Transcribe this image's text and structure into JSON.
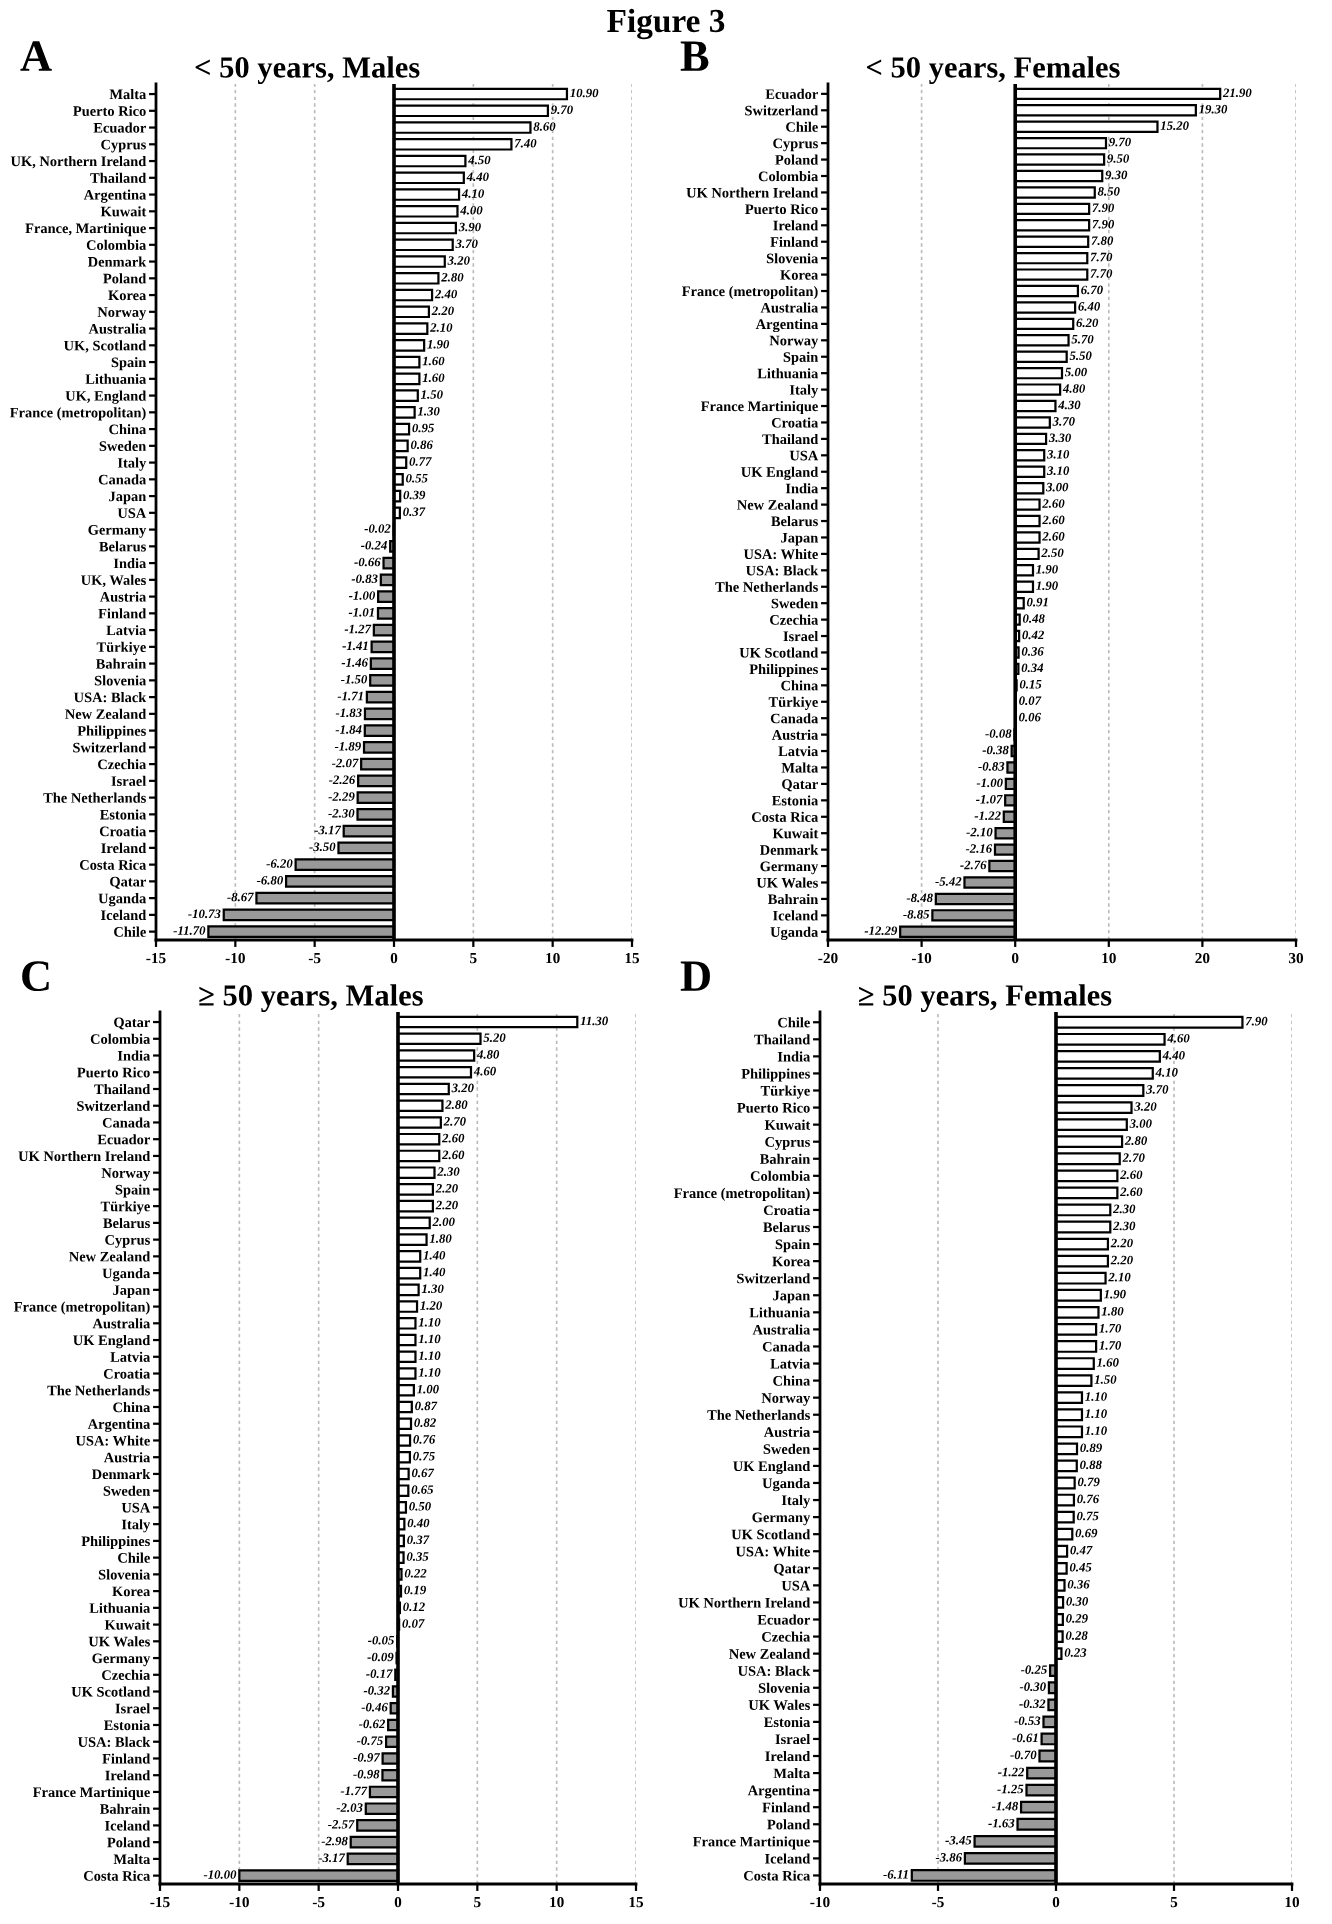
{
  "chart_data": [
    {
      "type": "bar",
      "orientation": "horizontal",
      "title": "< 50 years, Males",
      "annotations": [
        "A",
        "Figure 3"
      ],
      "grid": "x",
      "data_labels": true,
      "xlim": [
        -15,
        15
      ],
      "xticks": [
        -15,
        -10,
        -5,
        0,
        5,
        10,
        15
      ],
      "ref_lines": [
        {
          "axis": "x",
          "value": 0,
          "color": "#000000"
        }
      ],
      "categories": [
        "Malta",
        "Puerto Rico",
        "Ecuador",
        "Cyprus",
        "UK, Northern Ireland",
        "Thailand",
        "Argentina",
        "Kuwait",
        "France, Martinique",
        "Colombia",
        "Denmark",
        "Poland",
        "Korea",
        "Norway",
        "Australia",
        "UK, Scotland",
        "Spain",
        "Lithuania",
        "UK, England",
        "France (metropolitan)",
        "China",
        "Sweden",
        "Italy",
        "Canada",
        "Japan",
        "USA",
        "Germany",
        "Belarus",
        "India",
        "UK, Wales",
        "Austria",
        "Finland",
        "Latvia",
        "Türkiye",
        "Bahrain",
        "Slovenia",
        "USA: Black",
        "New Zealand",
        "Philippines",
        "Switzerland",
        "Czechia",
        "Israel",
        "The Netherlands",
        "Estonia",
        "Croatia",
        "Ireland",
        "Costa Rica",
        "Qatar",
        "Uganda",
        "Iceland",
        "Chile"
      ],
      "values": [
        10.9,
        9.7,
        8.6,
        7.4,
        4.5,
        4.4,
        4.1,
        4.0,
        3.9,
        3.7,
        3.2,
        2.8,
        2.4,
        2.2,
        2.1,
        1.9,
        1.6,
        1.6,
        1.5,
        1.3,
        0.95,
        0.86,
        0.77,
        0.55,
        0.39,
        0.37,
        -0.02,
        -0.24,
        -0.66,
        -0.83,
        -1.0,
        -1.01,
        -1.27,
        -1.41,
        -1.46,
        -1.5,
        -1.71,
        -1.83,
        -1.84,
        -1.89,
        -2.07,
        -2.26,
        -2.29,
        -2.3,
        -3.17,
        -3.5,
        -6.2,
        -6.8,
        -8.67,
        -10.73,
        -11.7
      ],
      "value_labels": [
        "10.90",
        "9.70",
        "8.60",
        "7.40",
        "4.50",
        "4.40",
        "4.10",
        "4.00",
        "3.90",
        "3.70",
        "3.20",
        "2.80",
        "2.40",
        "2.20",
        "2.10",
        "1.90",
        "1.60",
        "1.60",
        "1.50",
        "1.30",
        "0.95",
        "0.86",
        "0.77",
        "0.55",
        "0.39",
        "0.37",
        "-0.02",
        "-0.24",
        "-0.66",
        "-0.83",
        "-1.00",
        "-1.01",
        "-1.27",
        "-1.41",
        "-1.46",
        "-1.50",
        "-1.71",
        "-1.83",
        "-1.84",
        "-1.89",
        "-2.07",
        "-2.26",
        "-2.29",
        "-2.30",
        "-3.17",
        "-3.50",
        "-6.20",
        "-6.80",
        "-8.67",
        "-10.73",
        "-11.70"
      ],
      "colors": [
        "#ffffff",
        "#ffffff",
        "#ffffff",
        "#ffffff",
        "#ffffff",
        "#ffffff",
        "#ffffff",
        "#ffffff",
        "#ffffff",
        "#ffffff",
        "#ffffff",
        "#ffffff",
        "#ffffff",
        "#ffffff",
        "#ffffff",
        "#ffffff",
        "#ffffff",
        "#ffffff",
        "#ffffff",
        "#ffffff",
        "#ffffff",
        "#ffffff",
        "#ffffff",
        "#ffffff",
        "#ffffff",
        "#ffffff",
        "#999999",
        "#999999",
        "#999999",
        "#999999",
        "#999999",
        "#999999",
        "#999999",
        "#999999",
        "#999999",
        "#999999",
        "#999999",
        "#999999",
        "#999999",
        "#999999",
        "#999999",
        "#999999",
        "#999999",
        "#999999",
        "#999999",
        "#999999",
        "#999999",
        "#999999",
        "#999999",
        "#999999",
        "#999999"
      ]
    },
    {
      "type": "bar",
      "orientation": "horizontal",
      "title": "< 50 years, Females",
      "annotations": [
        "B"
      ],
      "grid": "x",
      "data_labels": true,
      "xlim": [
        -20,
        30
      ],
      "xticks": [
        -20,
        -10,
        0,
        10,
        20,
        30
      ],
      "ref_lines": [
        {
          "axis": "x",
          "value": 0,
          "color": "#000000"
        }
      ],
      "categories": [
        "Ecuador",
        "Switzerland",
        "Chile",
        "Cyprus",
        "Poland",
        "Colombia",
        "UK Northern Ireland",
        "Puerto Rico",
        "Ireland",
        "Finland",
        "Slovenia",
        "Korea",
        "France (metropolitan)",
        "Australia",
        "Argentina",
        "Norway",
        "Spain",
        "Lithuania",
        "Italy",
        "France Martinique",
        "Croatia",
        "Thailand",
        "USA",
        "UK England",
        "India",
        "New Zealand",
        "Belarus",
        "Japan",
        "USA: White",
        "USA: Black",
        "The Netherlands",
        "Sweden",
        "Czechia",
        "Israel",
        "UK Scotland",
        "Philippines",
        "China",
        "Türkiye",
        "Canada",
        "Austria",
        "Latvia",
        "Malta",
        "Qatar",
        "Estonia",
        "Costa Rica",
        "Kuwait",
        "Denmark",
        "Germany",
        "UK Wales",
        "Bahrain",
        "Iceland",
        "Uganda"
      ],
      "values": [
        21.9,
        19.3,
        15.2,
        9.7,
        9.5,
        9.3,
        8.5,
        7.9,
        7.9,
        7.8,
        7.7,
        7.7,
        6.7,
        6.4,
        6.2,
        5.7,
        5.5,
        5.0,
        4.8,
        4.3,
        3.7,
        3.3,
        3.1,
        3.1,
        3.0,
        2.6,
        2.6,
        2.6,
        2.5,
        1.9,
        1.9,
        0.91,
        0.48,
        0.42,
        0.36,
        0.34,
        0.15,
        0.07,
        0.06,
        -0.08,
        -0.38,
        -0.83,
        -1.0,
        -1.07,
        -1.22,
        -2.1,
        -2.16,
        -2.76,
        -5.42,
        -8.48,
        -8.85,
        -12.29
      ],
      "value_labels": [
        "21.90",
        "19.30",
        "15.20",
        "9.70",
        "9.50",
        "9.30",
        "8.50",
        "7.90",
        "7.90",
        "7.80",
        "7.70",
        "7.70",
        "6.70",
        "6.40",
        "6.20",
        "5.70",
        "5.50",
        "5.00",
        "4.80",
        "4.30",
        "3.70",
        "3.30",
        "3.10",
        "3.10",
        "3.00",
        "2.60",
        "2.60",
        "2.60",
        "2.50",
        "1.90",
        "1.90",
        "0.91",
        "0.48",
        "0.42",
        "0.36",
        "0.34",
        "0.15",
        "0.07",
        "0.06",
        "-0.08",
        "-0.38",
        "-0.83",
        "-1.00",
        "-1.07",
        "-1.22",
        "-2.10",
        "-2.16",
        "-2.76",
        "-5.42",
        "-8.48",
        "-8.85",
        "-12.29"
      ],
      "colors": [
        "#ffffff",
        "#ffffff",
        "#ffffff",
        "#ffffff",
        "#ffffff",
        "#ffffff",
        "#ffffff",
        "#ffffff",
        "#ffffff",
        "#ffffff",
        "#ffffff",
        "#ffffff",
        "#ffffff",
        "#ffffff",
        "#ffffff",
        "#ffffff",
        "#ffffff",
        "#ffffff",
        "#ffffff",
        "#ffffff",
        "#ffffff",
        "#ffffff",
        "#ffffff",
        "#ffffff",
        "#ffffff",
        "#ffffff",
        "#ffffff",
        "#ffffff",
        "#ffffff",
        "#ffffff",
        "#ffffff",
        "#ffffff",
        "#ffffff",
        "#ffffff",
        "#ffffff",
        "#ffffff",
        "#ffffff",
        "#ffffff",
        "#ffffff",
        "#999999",
        "#999999",
        "#999999",
        "#999999",
        "#999999",
        "#999999",
        "#999999",
        "#999999",
        "#999999",
        "#999999",
        "#999999",
        "#999999",
        "#999999"
      ]
    },
    {
      "type": "bar",
      "orientation": "horizontal",
      "title": "≥ 50 years, Males",
      "annotations": [
        "C"
      ],
      "grid": "x",
      "data_labels": true,
      "xlim": [
        -15,
        15
      ],
      "xticks": [
        -15,
        -10,
        -5,
        0,
        5,
        10,
        15
      ],
      "ref_lines": [
        {
          "axis": "x",
          "value": 0,
          "color": "#000000"
        }
      ],
      "categories": [
        "Qatar",
        "Colombia",
        "India",
        "Puerto Rico",
        "Thailand",
        "Switzerland",
        "Canada",
        "Ecuador",
        "UK Northern Ireland",
        "Norway",
        "Spain",
        "Türkiye",
        "Belarus",
        "Cyprus",
        "New Zealand",
        "Uganda",
        "Japan",
        "France (metropolitan)",
        "Australia",
        "UK England",
        "Latvia",
        "Croatia",
        "The Netherlands",
        "China",
        "Argentina",
        "USA: White",
        "Austria",
        "Denmark",
        "Sweden",
        "USA",
        "Italy",
        "Philippines",
        "Chile",
        "Slovenia",
        "Korea",
        "Lithuania",
        "Kuwait",
        "UK Wales",
        "Germany",
        "Czechia",
        "UK Scotland",
        "Israel",
        "Estonia",
        "USA: Black",
        "Finland",
        "Ireland",
        "France Martinique",
        "Bahrain",
        "Iceland",
        "Poland",
        "Malta",
        "Costa Rica"
      ],
      "values": [
        11.3,
        5.2,
        4.8,
        4.6,
        3.2,
        2.8,
        2.7,
        2.6,
        2.6,
        2.3,
        2.2,
        2.2,
        2.0,
        1.8,
        1.4,
        1.4,
        1.3,
        1.2,
        1.1,
        1.1,
        1.1,
        1.1,
        1.0,
        0.87,
        0.82,
        0.76,
        0.75,
        0.67,
        0.65,
        0.5,
        0.4,
        0.37,
        0.35,
        0.22,
        0.19,
        0.12,
        0.07,
        -0.05,
        -0.09,
        -0.17,
        -0.32,
        -0.46,
        -0.62,
        -0.75,
        -0.97,
        -0.98,
        -1.77,
        -2.03,
        -2.57,
        -2.98,
        -3.17,
        -10.0
      ],
      "value_labels": [
        "11.30",
        "5.20",
        "4.80",
        "4.60",
        "3.20",
        "2.80",
        "2.70",
        "2.60",
        "2.60",
        "2.30",
        "2.20",
        "2.20",
        "2.00",
        "1.80",
        "1.40",
        "1.40",
        "1.30",
        "1.20",
        "1.10",
        "1.10",
        "1.10",
        "1.10",
        "1.00",
        "0.87",
        "0.82",
        "0.76",
        "0.75",
        "0.67",
        "0.65",
        "0.50",
        "0.40",
        "0.37",
        "0.35",
        "0.22",
        "0.19",
        "0.12",
        "0.07",
        "-0.05",
        "-0.09",
        "-0.17",
        "-0.32",
        "-0.46",
        "-0.62",
        "-0.75",
        "-0.97",
        "-0.98",
        "-1.77",
        "-2.03",
        "-2.57",
        "-2.98",
        "-3.17",
        "-10.00"
      ],
      "colors": [
        "#ffffff",
        "#ffffff",
        "#ffffff",
        "#ffffff",
        "#ffffff",
        "#ffffff",
        "#ffffff",
        "#ffffff",
        "#ffffff",
        "#ffffff",
        "#ffffff",
        "#ffffff",
        "#ffffff",
        "#ffffff",
        "#ffffff",
        "#ffffff",
        "#ffffff",
        "#ffffff",
        "#ffffff",
        "#ffffff",
        "#ffffff",
        "#ffffff",
        "#ffffff",
        "#ffffff",
        "#ffffff",
        "#ffffff",
        "#ffffff",
        "#ffffff",
        "#ffffff",
        "#ffffff",
        "#ffffff",
        "#ffffff",
        "#ffffff",
        "#ffffff",
        "#ffffff",
        "#ffffff",
        "#ffffff",
        "#999999",
        "#999999",
        "#999999",
        "#999999",
        "#999999",
        "#999999",
        "#999999",
        "#999999",
        "#999999",
        "#999999",
        "#999999",
        "#999999",
        "#999999",
        "#999999",
        "#999999"
      ]
    },
    {
      "type": "bar",
      "orientation": "horizontal",
      "title": "≥ 50 years, Females",
      "annotations": [
        "D"
      ],
      "grid": "x",
      "data_labels": true,
      "xlim": [
        -10,
        10
      ],
      "xticks": [
        -10,
        -5,
        0,
        5,
        10
      ],
      "ref_lines": [
        {
          "axis": "x",
          "value": 0,
          "color": "#000000"
        }
      ],
      "categories": [
        "Chile",
        "Thailand",
        "India",
        "Philippines",
        "Türkiye",
        "Puerto Rico",
        "Kuwait",
        "Cyprus",
        "Bahrain",
        "Colombia",
        "France (metropolitan)",
        "Croatia",
        "Belarus",
        "Spain",
        "Korea",
        "Switzerland",
        "Japan",
        "Lithuania",
        "Australia",
        "Canada",
        "Latvia",
        "China",
        "Norway",
        "The Netherlands",
        "Austria",
        "Sweden",
        "UK England",
        "Uganda",
        "Italy",
        "Germany",
        "UK Scotland",
        "USA: White",
        "Qatar",
        "USA",
        "UK Northern Ireland",
        "Ecuador",
        "Czechia",
        "New Zealand",
        "USA: Black",
        "Slovenia",
        "UK Wales",
        "Estonia",
        "Israel",
        "Ireland",
        "Malta",
        "Argentina",
        "Finland",
        "Poland",
        "France Martinique",
        "Iceland",
        "Costa Rica"
      ],
      "values": [
        7.9,
        4.6,
        4.4,
        4.1,
        3.7,
        3.2,
        3.0,
        2.8,
        2.7,
        2.6,
        2.6,
        2.3,
        2.3,
        2.2,
        2.2,
        2.1,
        1.9,
        1.8,
        1.7,
        1.7,
        1.6,
        1.5,
        1.1,
        1.1,
        1.1,
        0.89,
        0.88,
        0.79,
        0.76,
        0.75,
        0.69,
        0.47,
        0.45,
        0.36,
        0.3,
        0.29,
        0.28,
        0.23,
        -0.25,
        -0.3,
        -0.32,
        -0.53,
        -0.61,
        -0.7,
        -1.22,
        -1.25,
        -1.48,
        -1.63,
        -3.45,
        -3.86,
        -6.11
      ],
      "value_labels": [
        "7.90",
        "4.60",
        "4.40",
        "4.10",
        "3.70",
        "3.20",
        "3.00",
        "2.80",
        "2.70",
        "2.60",
        "2.60",
        "2.30",
        "2.30",
        "2.20",
        "2.20",
        "2.10",
        "1.90",
        "1.80",
        "1.70",
        "1.70",
        "1.60",
        "1.50",
        "1.10",
        "1.10",
        "1.10",
        "0.89",
        "0.88",
        "0.79",
        "0.76",
        "0.75",
        "0.69",
        "0.47",
        "0.45",
        "0.36",
        "0.30",
        "0.29",
        "0.28",
        "0.23",
        "-0.25",
        "-0.30",
        "-0.32",
        "-0.53",
        "-0.61",
        "-0.70",
        "-1.22",
        "-1.25",
        "-1.48",
        "-1.63",
        "-3.45",
        "-3.86",
        "-6.11"
      ],
      "colors": [
        "#ffffff",
        "#ffffff",
        "#ffffff",
        "#ffffff",
        "#ffffff",
        "#ffffff",
        "#ffffff",
        "#ffffff",
        "#ffffff",
        "#ffffff",
        "#ffffff",
        "#ffffff",
        "#ffffff",
        "#ffffff",
        "#ffffff",
        "#ffffff",
        "#ffffff",
        "#ffffff",
        "#ffffff",
        "#ffffff",
        "#ffffff",
        "#ffffff",
        "#ffffff",
        "#ffffff",
        "#ffffff",
        "#ffffff",
        "#ffffff",
        "#ffffff",
        "#ffffff",
        "#ffffff",
        "#ffffff",
        "#ffffff",
        "#ffffff",
        "#ffffff",
        "#ffffff",
        "#ffffff",
        "#ffffff",
        "#ffffff",
        "#999999",
        "#999999",
        "#999999",
        "#999999",
        "#999999",
        "#999999",
        "#999999",
        "#999999",
        "#999999",
        "#999999",
        "#999999",
        "#999999",
        "#999999"
      ]
    }
  ]
}
